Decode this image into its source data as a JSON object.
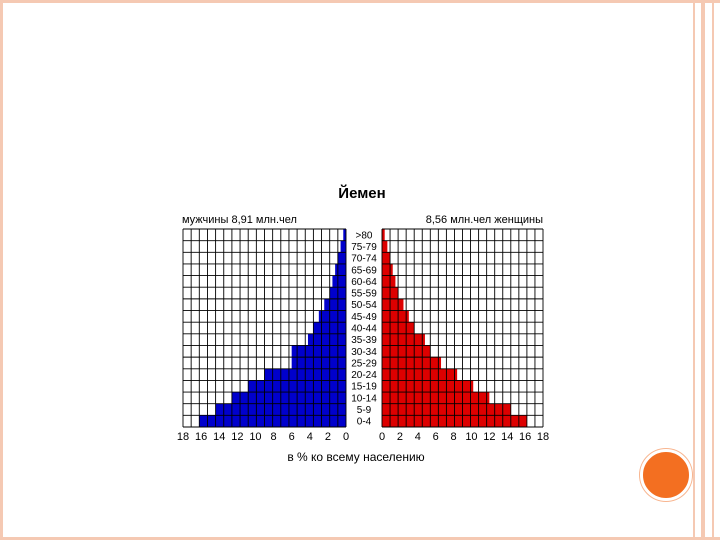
{
  "chart_data": {
    "type": "bar",
    "title": "Йемен",
    "left_label": "мужчины 8,91 млн.чел",
    "right_label": "8,56 млн.чел  женщины",
    "xlabel": "в % ко всему населению",
    "categories": [
      ">80",
      "75-79",
      "70-74",
      "65-69",
      "60-64",
      "55-59",
      "50-54",
      "45-49",
      "40-44",
      "35-39",
      "30-34",
      "25-29",
      "20-24",
      "15-19",
      "10-14",
      "5-9",
      "0-4"
    ],
    "x_ticks_left": [
      "18",
      "16",
      "14",
      "12",
      "10",
      "8",
      "6",
      "4",
      "2",
      "0"
    ],
    "x_ticks_right": [
      "0",
      "2",
      "4",
      "6",
      "8",
      "10",
      "12",
      "14",
      "16",
      "18"
    ],
    "xlim": [
      0,
      18
    ],
    "grid": true,
    "series": [
      {
        "name": "мужчины",
        "color": "#0000cc",
        "values": [
          0.3,
          0.6,
          0.9,
          1.2,
          1.5,
          1.8,
          2.4,
          3.0,
          3.6,
          4.2,
          6.0,
          6.0,
          9.0,
          10.8,
          12.6,
          14.4,
          16.2
        ]
      },
      {
        "name": "женщины",
        "color": "#dd0000",
        "values": [
          0.3,
          0.6,
          0.9,
          1.2,
          1.5,
          1.8,
          2.4,
          3.0,
          3.6,
          4.8,
          5.4,
          6.6,
          8.4,
          10.2,
          12.0,
          14.4,
          16.2
        ]
      }
    ]
  }
}
